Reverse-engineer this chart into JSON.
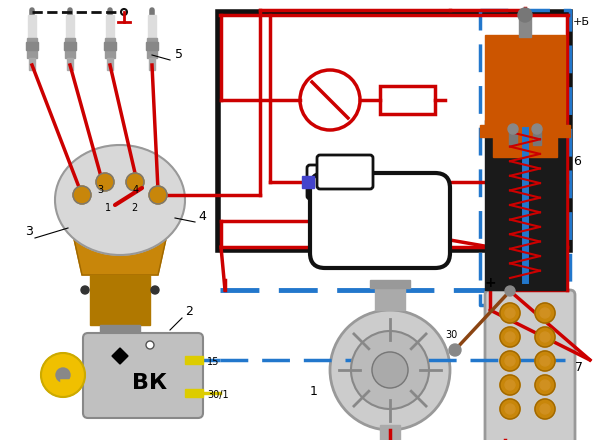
{
  "bg_color": "#ffffff",
  "fig_width": 6.0,
  "fig_height": 4.4,
  "dpi": 100,
  "red": "#cc0000",
  "black": "#111111",
  "blue": "#2277cc",
  "brown": "#8B4513",
  "gold": "#c8860a",
  "gray": "#aaaaaa",
  "dark": "#1a1a1a",
  "orange": "#d2640a"
}
